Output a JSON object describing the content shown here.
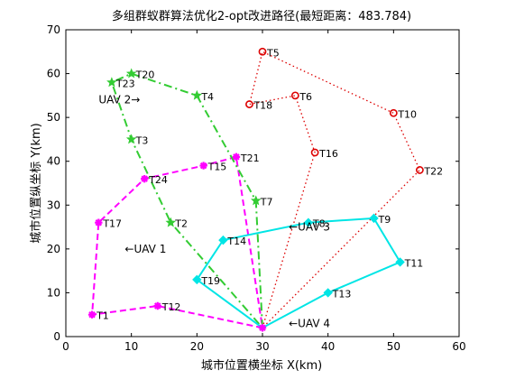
{
  "chart_data": {
    "type": "line",
    "title": "多组群蚁群算法优化2-opt改进路径(最短距离：483.784)",
    "xlabel": "城市位置横坐标 X(km)",
    "ylabel": "城市位置纵坐标 Y(km)",
    "xlim": [
      0,
      60
    ],
    "ylim": [
      0,
      70
    ],
    "xticks": [
      0,
      10,
      20,
      30,
      40,
      50,
      60
    ],
    "yticks": [
      0,
      10,
      20,
      30,
      40,
      50,
      60,
      70
    ],
    "grid": false,
    "depot": {
      "x": 30,
      "y": 2
    },
    "targets": [
      {
        "name": "T1",
        "x": 4,
        "y": 5
      },
      {
        "name": "T2",
        "x": 16,
        "y": 26
      },
      {
        "name": "T3",
        "x": 10,
        "y": 45
      },
      {
        "name": "T4",
        "x": 20,
        "y": 55
      },
      {
        "name": "T5",
        "x": 30,
        "y": 65
      },
      {
        "name": "T6",
        "x": 35,
        "y": 55
      },
      {
        "name": "T7",
        "x": 29,
        "y": 31
      },
      {
        "name": "T8",
        "x": 37,
        "y": 26
      },
      {
        "name": "T9",
        "x": 47,
        "y": 27
      },
      {
        "name": "T10",
        "x": 50,
        "y": 51
      },
      {
        "name": "T11",
        "x": 51,
        "y": 17
      },
      {
        "name": "T12",
        "x": 14,
        "y": 7
      },
      {
        "name": "T13",
        "x": 40,
        "y": 10
      },
      {
        "name": "T14",
        "x": 24,
        "y": 22
      },
      {
        "name": "T15",
        "x": 21,
        "y": 39
      },
      {
        "name": "T16",
        "x": 38,
        "y": 42
      },
      {
        "name": "T17",
        "x": 5,
        "y": 26
      },
      {
        "name": "T18",
        "x": 28,
        "y": 53
      },
      {
        "name": "T19",
        "x": 20,
        "y": 13
      },
      {
        "name": "T20",
        "x": 10,
        "y": 60
      },
      {
        "name": "T21",
        "x": 26,
        "y": 41
      },
      {
        "name": "T22",
        "x": 54,
        "y": 38
      },
      {
        "name": "T23",
        "x": 7,
        "y": 58
      },
      {
        "name": "T24",
        "x": 12,
        "y": 36
      }
    ],
    "series": [
      {
        "name": "UAV 1",
        "color": "#ff00ff",
        "dash": "dashed",
        "marker": "asterisk",
        "route": [
          "T12",
          "T1",
          "T17",
          "T24",
          "T15",
          "T21"
        ]
      },
      {
        "name": "UAV 2",
        "color": "#33cc33",
        "dash": "dashdot",
        "marker": "pentagram",
        "route": [
          "T7",
          "T4",
          "T20",
          "T23",
          "T3",
          "T2"
        ]
      },
      {
        "name": "UAV 3",
        "color": "#dd0000",
        "dash": "dotted",
        "marker": "circle",
        "route": [
          "T16",
          "T6",
          "T18",
          "T5",
          "T10",
          "T22"
        ]
      },
      {
        "name": "UAV 4",
        "color": "#00e5e5",
        "dash": "solid",
        "marker": "diamond",
        "route": [
          "T13",
          "T11",
          "T9",
          "T8",
          "T14",
          "T19"
        ]
      }
    ],
    "annotations": [
      {
        "text": "←UAV 1",
        "x": 9,
        "y": 20
      },
      {
        "text": "UAV 2→",
        "x": 5,
        "y": 54
      },
      {
        "text": "←UAV 3",
        "x": 34,
        "y": 25
      },
      {
        "text": "←UAV 4",
        "x": 34,
        "y": 3
      }
    ]
  }
}
